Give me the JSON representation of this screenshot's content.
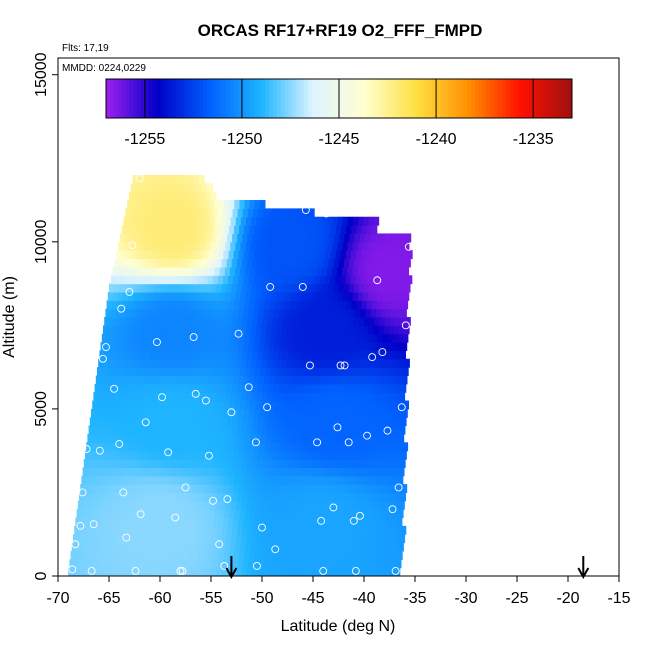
{
  "chart_data": {
    "type": "heatmap",
    "title": "ORCAS RF17+RF19 O2_FFF_FMPD",
    "flights_note": "Flts: 17,19",
    "date_note": "MMDD: 0224,0229",
    "xlabel": "Latitude (deg N)",
    "ylabel": "Altitude (m)",
    "xlim": [
      -70,
      -15
    ],
    "ylim": [
      0,
      15500
    ],
    "x_ticks": [
      -70,
      -65,
      -60,
      -55,
      -50,
      -45,
      -40,
      -35,
      -30,
      -25,
      -20,
      -15
    ],
    "x_tick_labels": [
      "-70",
      "-65",
      "-60",
      "-55",
      "-50",
      "-45",
      "-40",
      "-35",
      "-30",
      "-25",
      "-20",
      "-15"
    ],
    "y_ticks": [
      0,
      5000,
      10000,
      15000
    ],
    "y_tick_labels": [
      "0",
      "5000",
      "10000",
      "15000"
    ],
    "colorbar": {
      "range": [
        -1257,
        -1233
      ],
      "ticks": [
        -1255,
        -1250,
        -1245,
        -1240,
        -1235
      ],
      "tick_labels": [
        "-1255",
        "-1250",
        "-1245",
        "-1240",
        "-1235"
      ],
      "colors": [
        "#a020f0",
        "#0000c8",
        "#0060ff",
        "#1eb4ff",
        "#dff4ff",
        "#ffffd0",
        "#ffe040",
        "#ff9000",
        "#ff1000",
        "#a01010"
      ],
      "orientation": "horizontal",
      "placement": "top-inside"
    },
    "grid": false,
    "field_regions": [
      {
        "lat_range": [
          -68.5,
          -52
        ],
        "alt_range": [
          0,
          3000
        ],
        "value": -1247.5
      },
      {
        "lat_range": [
          -52,
          -36.5
        ],
        "alt_range": [
          0,
          3000
        ],
        "value": -1249.5
      },
      {
        "lat_range": [
          -68,
          -50
        ],
        "alt_range": [
          3000,
          6000
        ],
        "value": -1249
      },
      {
        "lat_range": [
          -50,
          -36
        ],
        "alt_range": [
          3000,
          6000
        ],
        "value": -1251.5
      },
      {
        "lat_range": [
          -66,
          -52
        ],
        "alt_range": [
          6000,
          8500
        ],
        "value": -1250.5
      },
      {
        "lat_range": [
          -52,
          -36
        ],
        "alt_range": [
          6000,
          8500
        ],
        "value": -1253.5
      },
      {
        "lat_range": [
          -63,
          -55
        ],
        "alt_range": [
          8500,
          12000
        ],
        "value": -1242
      },
      {
        "lat_range": [
          -55,
          -40
        ],
        "alt_range": [
          8500,
          11000
        ],
        "value": -1252
      },
      {
        "lat_range": [
          -40,
          -35.5
        ],
        "alt_range": [
          8000,
          10000
        ],
        "value": -1256.5
      }
    ],
    "observation_points": [
      {
        "lat": -68.6,
        "alt": 200
      },
      {
        "lat": -68.3,
        "alt": 950
      },
      {
        "lat": -67.8,
        "alt": 1500
      },
      {
        "lat": -67.6,
        "alt": 2500
      },
      {
        "lat": -67.2,
        "alt": 3800
      },
      {
        "lat": -66.8,
        "alt": 5600
      },
      {
        "lat": -66.7,
        "alt": 150
      },
      {
        "lat": -66.5,
        "alt": 1550
      },
      {
        "lat": -65.9,
        "alt": 3750
      },
      {
        "lat": -65.6,
        "alt": 6500
      },
      {
        "lat": -65.3,
        "alt": 6850
      },
      {
        "lat": -64.5,
        "alt": 5600
      },
      {
        "lat": -64.0,
        "alt": 3950
      },
      {
        "lat": -63.8,
        "alt": 8000
      },
      {
        "lat": -63.6,
        "alt": 2500
      },
      {
        "lat": -63.3,
        "alt": 1150
      },
      {
        "lat": -63.0,
        "alt": 8500
      },
      {
        "lat": -62.7,
        "alt": 9900
      },
      {
        "lat": -62.4,
        "alt": 150
      },
      {
        "lat": -62.0,
        "alt": 11900
      },
      {
        "lat": -61.9,
        "alt": 1850
      },
      {
        "lat": -61.4,
        "alt": 4600
      },
      {
        "lat": -60.3,
        "alt": 7000
      },
      {
        "lat": -59.8,
        "alt": 5350
      },
      {
        "lat": -59.2,
        "alt": 3700
      },
      {
        "lat": -58.5,
        "alt": 1750
      },
      {
        "lat": -58.0,
        "alt": 150
      },
      {
        "lat": -57.5,
        "alt": 2650
      },
      {
        "lat": -56.7,
        "alt": 7150
      },
      {
        "lat": -56.5,
        "alt": 5450
      },
      {
        "lat": -55.5,
        "alt": 5250
      },
      {
        "lat": -55.2,
        "alt": 3600
      },
      {
        "lat": -54.8,
        "alt": 2250
      },
      {
        "lat": -54.2,
        "alt": 950
      },
      {
        "lat": -53.7,
        "alt": 300
      },
      {
        "lat": -53.4,
        "alt": 2300
      },
      {
        "lat": -53.0,
        "alt": 4900
      },
      {
        "lat": -52.3,
        "alt": 7250
      },
      {
        "lat": -51.3,
        "alt": 5650
      },
      {
        "lat": -50.6,
        "alt": 4000
      },
      {
        "lat": -50.0,
        "alt": 1450
      },
      {
        "lat": -49.5,
        "alt": 5050
      },
      {
        "lat": -49.2,
        "alt": 8650
      },
      {
        "lat": -48.7,
        "alt": 800
      },
      {
        "lat": -46.0,
        "alt": 8650
      },
      {
        "lat": -45.7,
        "alt": 10950
      },
      {
        "lat": -45.3,
        "alt": 6300
      },
      {
        "lat": -44.6,
        "alt": 4000
      },
      {
        "lat": -44.2,
        "alt": 1650
      },
      {
        "lat": -43.7,
        "alt": 10850
      },
      {
        "lat": -43.0,
        "alt": 2050
      },
      {
        "lat": -42.6,
        "alt": 4450
      },
      {
        "lat": -42.3,
        "alt": 6300
      },
      {
        "lat": -41.9,
        "alt": 6300
      },
      {
        "lat": -41.5,
        "alt": 4000
      },
      {
        "lat": -41.0,
        "alt": 1650
      },
      {
        "lat": -40.4,
        "alt": 1800
      },
      {
        "lat": -39.7,
        "alt": 4200
      },
      {
        "lat": -39.2,
        "alt": 6550
      },
      {
        "lat": -38.7,
        "alt": 8850
      },
      {
        "lat": -38.2,
        "alt": 6700
      },
      {
        "lat": -37.7,
        "alt": 4350
      },
      {
        "lat": -37.2,
        "alt": 2000
      },
      {
        "lat": -36.6,
        "alt": 2650
      },
      {
        "lat": -36.3,
        "alt": 5050
      },
      {
        "lat": -35.9,
        "alt": 7500
      },
      {
        "lat": -35.6,
        "alt": 9850
      },
      {
        "lat": -36.9,
        "alt": 150
      },
      {
        "lat": -40.8,
        "alt": 150
      },
      {
        "lat": -44.0,
        "alt": 150
      },
      {
        "lat": -50.5,
        "alt": 300
      },
      {
        "lat": -57.8,
        "alt": 150
      }
    ],
    "arrows_lat": [
      -53.0,
      -18.5
    ]
  }
}
